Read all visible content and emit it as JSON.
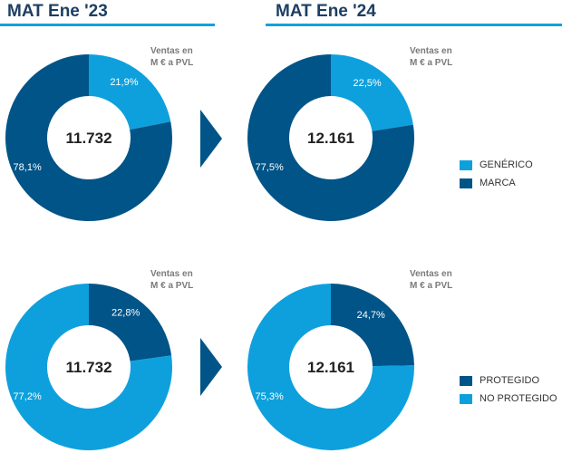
{
  "colors": {
    "light": "#0ea0dd",
    "dark": "#005487",
    "title": "#1d3f63"
  },
  "headers": {
    "left": "MAT Ene '23",
    "right": "MAT Ene '24"
  },
  "unit_label": [
    "Ventas en",
    "M € a PVL"
  ],
  "chart_data": [
    {
      "type": "pie",
      "title": "MAT Ene '23",
      "total": "11.732",
      "slices": [
        {
          "name": "GENÉRICO",
          "value": 21.9,
          "label": "21,9%"
        },
        {
          "name": "MARCA",
          "value": 78.1,
          "label": "78,1%"
        }
      ]
    },
    {
      "type": "pie",
      "title": "MAT Ene '24",
      "total": "12.161",
      "slices": [
        {
          "name": "GENÉRICO",
          "value": 22.5,
          "label": "22,5%"
        },
        {
          "name": "MARCA",
          "value": 77.5,
          "label": "77,5%"
        }
      ]
    },
    {
      "type": "pie",
      "title": "MAT Ene '23",
      "total": "11.732",
      "slices": [
        {
          "name": "PROTEGIDO",
          "value": 22.8,
          "label": "22,8%"
        },
        {
          "name": "NO PROTEGIDO",
          "value": 77.2,
          "label": "77,2%"
        }
      ]
    },
    {
      "type": "pie",
      "title": "MAT Ene '24",
      "total": "12.161",
      "slices": [
        {
          "name": "PROTEGIDO",
          "value": 24.7,
          "label": "24,7%"
        },
        {
          "name": "NO PROTEGIDO",
          "value": 75.3,
          "label": "75,3%"
        }
      ]
    }
  ],
  "legend_top": [
    {
      "label": "GENÉRICO",
      "color": "light"
    },
    {
      "label": "MARCA",
      "color": "dark"
    }
  ],
  "legend_bottom": [
    {
      "label": "PROTEGIDO",
      "color": "dark"
    },
    {
      "label": "NO PROTEGIDO",
      "color": "light"
    }
  ]
}
